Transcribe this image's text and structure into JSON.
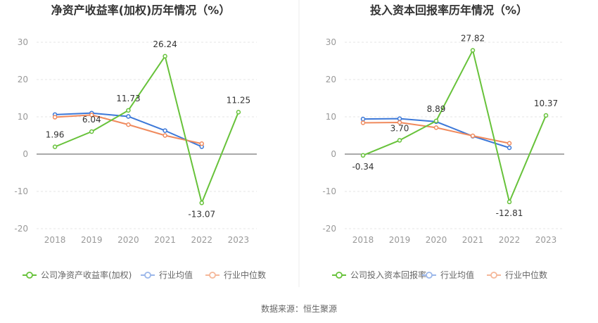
{
  "source": "数据来源：恒生聚源",
  "chart_data": [
    {
      "type": "line",
      "title": "净资产收益率(加权)历年情况（%）",
      "categories": [
        "2018",
        "2019",
        "2020",
        "2021",
        "2022",
        "2023"
      ],
      "ylim": [
        -20,
        30
      ],
      "yticks": [
        -20,
        -10,
        0,
        10,
        20,
        30
      ],
      "grid": true,
      "legend_position": "bottom-left",
      "series": [
        {
          "name": "公司净资产收益率(加权)",
          "color": "#67c23a",
          "show_labels": true,
          "values": [
            1.96,
            6.04,
            11.73,
            26.24,
            -13.07,
            11.25
          ],
          "labels": [
            "1.96",
            "6.04",
            "11.73",
            "26.24",
            "-13.07",
            "11.25"
          ]
        },
        {
          "name": "行业均值",
          "color": "#3c78d8",
          "show_labels": false,
          "values": [
            10.6,
            11.0,
            10.1,
            6.3,
            2.0,
            null
          ]
        },
        {
          "name": "行业中位数",
          "color": "#f08a5d",
          "show_labels": false,
          "values": [
            9.9,
            10.5,
            7.9,
            5.0,
            2.8,
            null
          ]
        }
      ]
    },
    {
      "type": "line",
      "title": "投入资本回报率历年情况（%）",
      "categories": [
        "2018",
        "2019",
        "2020",
        "2021",
        "2022",
        "2023"
      ],
      "ylim": [
        -20,
        30
      ],
      "yticks": [
        -20,
        -10,
        0,
        10,
        20,
        30
      ],
      "grid": true,
      "legend_position": "bottom-left",
      "series": [
        {
          "name": "公司投入资本回报率",
          "color": "#67c23a",
          "show_labels": true,
          "values": [
            -0.34,
            3.7,
            8.89,
            27.82,
            -12.81,
            10.37
          ],
          "labels": [
            "-0.34",
            "3.70",
            "8.89",
            "27.82",
            "-12.81",
            "10.37"
          ]
        },
        {
          "name": "行业均值",
          "color": "#3c78d8",
          "show_labels": false,
          "values": [
            9.4,
            9.5,
            8.7,
            4.8,
            1.7,
            null
          ]
        },
        {
          "name": "行业中位数",
          "color": "#f08a5d",
          "show_labels": false,
          "values": [
            8.4,
            8.5,
            7.1,
            4.9,
            2.9,
            null
          ]
        }
      ]
    }
  ]
}
